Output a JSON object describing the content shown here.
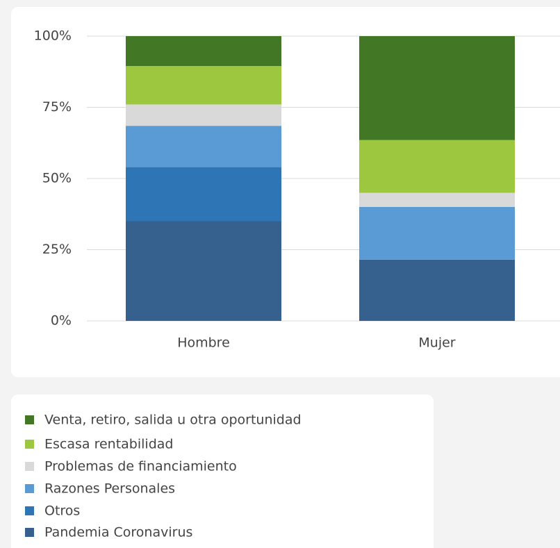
{
  "chart_data": {
    "type": "stacked_bar",
    "categories": [
      "Hombre",
      "Mujer"
    ],
    "series": [
      {
        "name": "Pandemia Coronavirus",
        "color": "#36618e",
        "values": [
          35,
          21.5
        ]
      },
      {
        "name": "Otros",
        "color": "#2e75b6",
        "values": [
          19,
          0
        ]
      },
      {
        "name": "Razones Personales",
        "color": "#5b9bd5",
        "values": [
          14.5,
          18.5
        ]
      },
      {
        "name": "Problemas de financiamiento",
        "color": "#d9d9d9",
        "values": [
          7.5,
          5
        ]
      },
      {
        "name": "Escasa rentabilidad",
        "color": "#9dc73f",
        "values": [
          13.5,
          18.5
        ]
      },
      {
        "name": "Venta, retiro, salida u otra oportunidad",
        "color": "#417725",
        "values": [
          10.5,
          36.5
        ]
      }
    ],
    "ylim": [
      0,
      100
    ],
    "yticks": [
      {
        "value": 0,
        "label": "0%"
      },
      {
        "value": 25,
        "label": "25%"
      },
      {
        "value": 50,
        "label": "50%"
      },
      {
        "value": 75,
        "label": "75%"
      },
      {
        "value": 100,
        "label": "100%"
      }
    ],
    "grid": true,
    "legend": "bottom"
  }
}
